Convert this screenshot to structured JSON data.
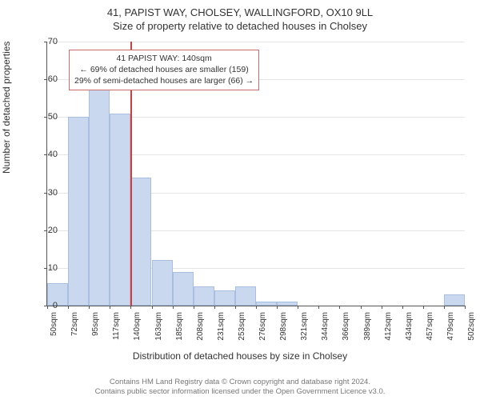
{
  "title_main": "41, PAPIST WAY, CHOLSEY, WALLINGFORD, OX10 9LL",
  "title_sub": "Size of property relative to detached houses in Cholsey",
  "ylabel": "Number of detached properties",
  "xlabel": "Distribution of detached houses by size in Cholsey",
  "chart": {
    "type": "histogram",
    "ylim": [
      0,
      70
    ],
    "ytick_step": 10,
    "yticks": [
      0,
      10,
      20,
      30,
      40,
      50,
      60,
      70
    ],
    "xticks": [
      "50sqm",
      "72sqm",
      "95sqm",
      "117sqm",
      "140sqm",
      "163sqm",
      "185sqm",
      "208sqm",
      "231sqm",
      "253sqm",
      "276sqm",
      "298sqm",
      "321sqm",
      "344sqm",
      "366sqm",
      "389sqm",
      "412sqm",
      "434sqm",
      "457sqm",
      "479sqm",
      "502sqm"
    ],
    "values": [
      6,
      50,
      58,
      51,
      34,
      12,
      9,
      5,
      4,
      5,
      1,
      1,
      0,
      0,
      0,
      0,
      0,
      0,
      0,
      3
    ],
    "bar_color": "#c9d8ef",
    "bar_border_color": "#a8bfdf",
    "grid_color": "#e5e5e5",
    "axis_color": "#555555",
    "vline_color": "#d43b3b",
    "vline_x_index": 4,
    "background_color": "#ffffff"
  },
  "info": {
    "line1": "41 PAPIST WAY: 140sqm",
    "line2": "← 69% of detached houses are smaller (159)",
    "line3": "29% of semi-detached houses are larger (66) →",
    "border_color": "#c86b6b"
  },
  "footer": {
    "line1": "Contains HM Land Registry data © Crown copyright and database right 2024.",
    "line2": "Contains public sector information licensed under the Open Government Licence v3.0."
  }
}
